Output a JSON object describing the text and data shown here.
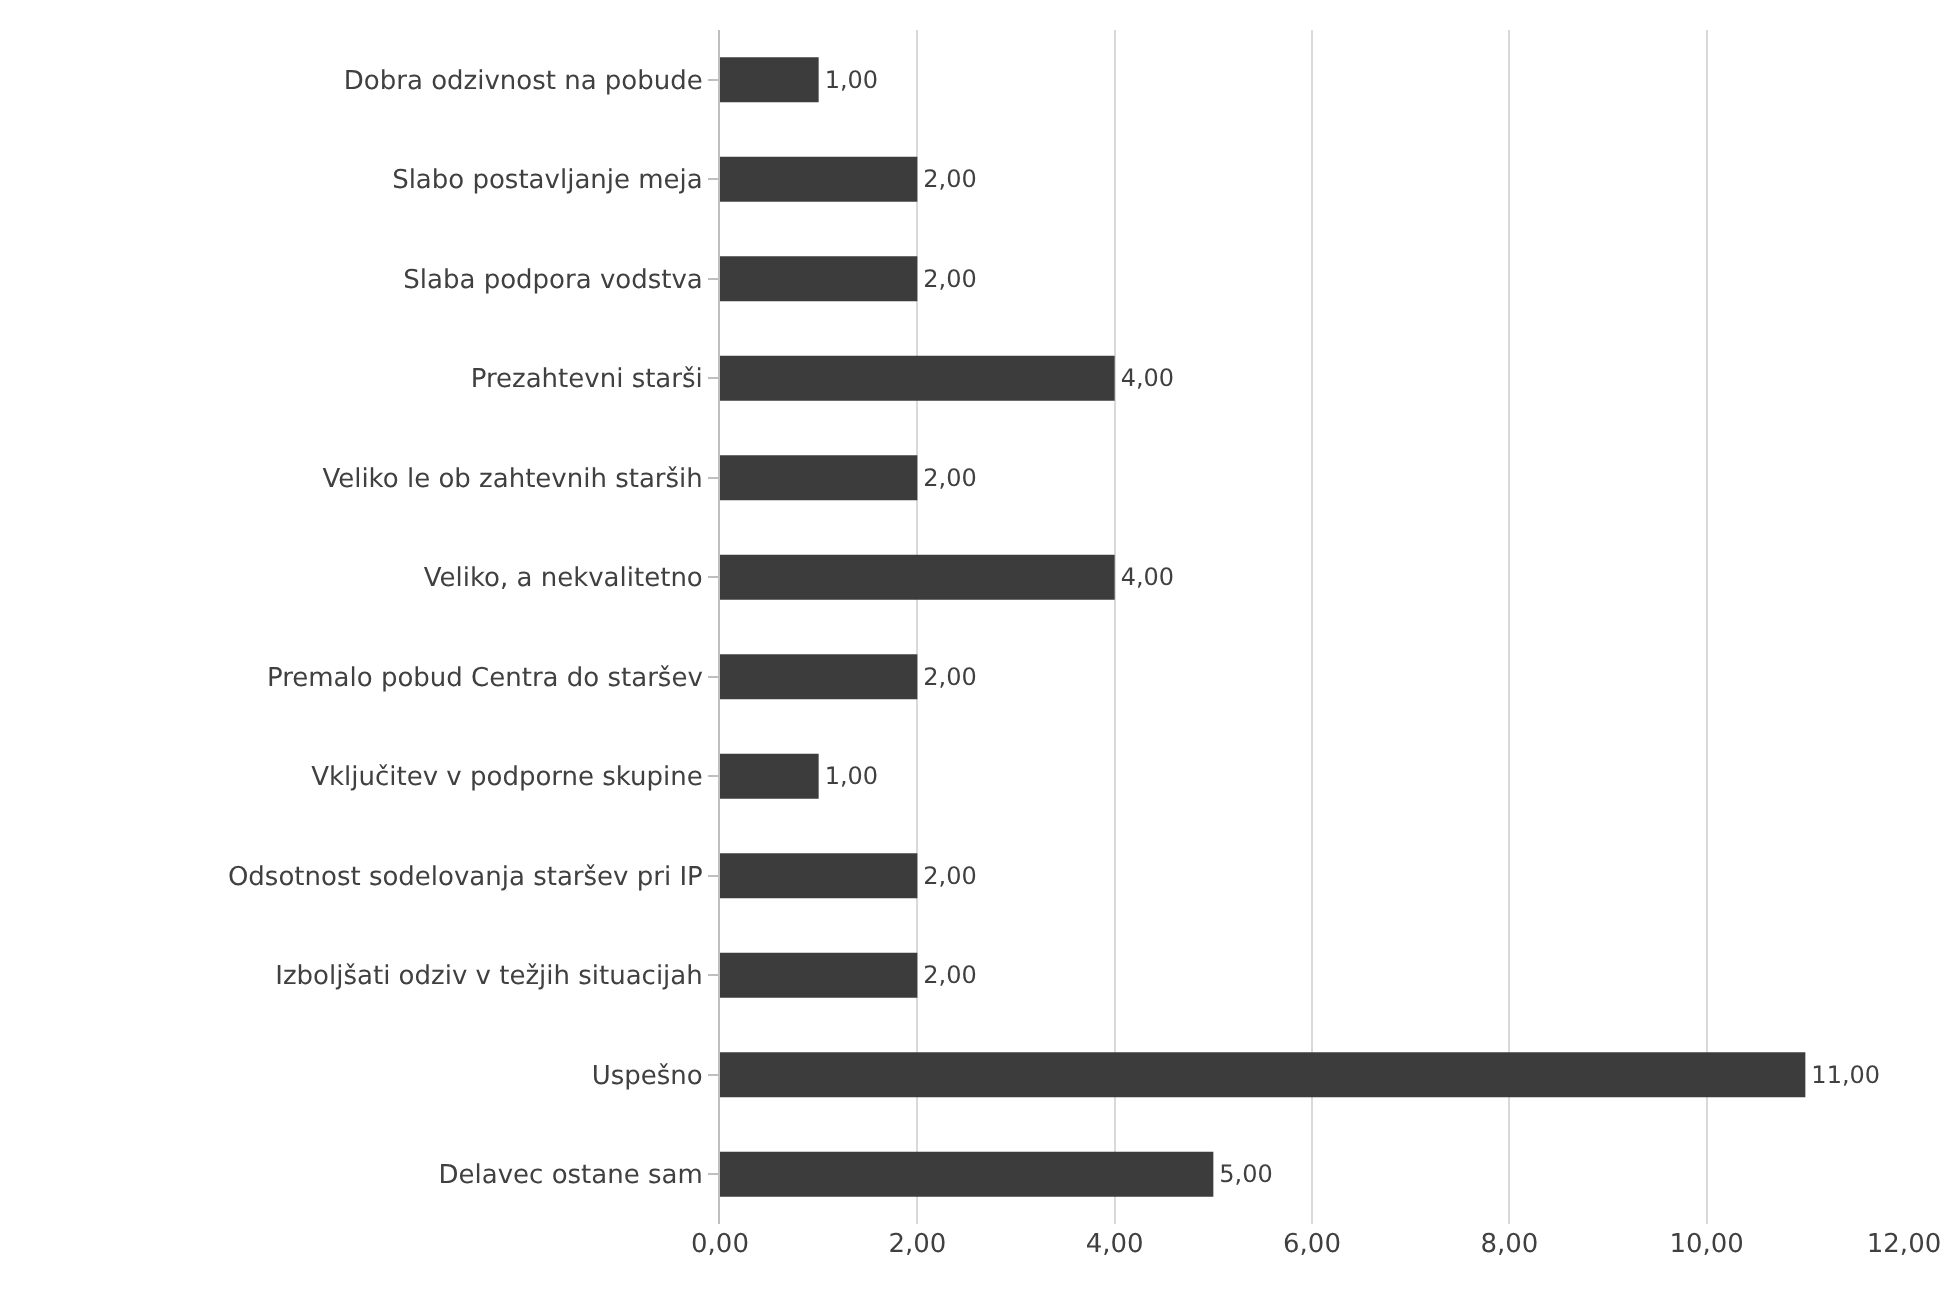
{
  "chart_data": {
    "type": "bar",
    "orientation": "horizontal",
    "categories": [
      "Dobra odzivnost na pobude",
      "Slabo postavljanje meja",
      "Slaba podpora vodstva",
      "Prezahtevni starši",
      "Veliko le ob zahtevnih starših",
      "Veliko, a nekvalitetno",
      "Premalo pobud Centra do staršev",
      "Vključitev v podporne skupine",
      "Odsotnost sodelovanja staršev pri IP",
      "Izboljšati odziv v težjih situacijah",
      "Uspešno",
      "Delavec ostane sam"
    ],
    "values": [
      1,
      2,
      2,
      4,
      2,
      4,
      2,
      1,
      2,
      2,
      11,
      5
    ],
    "value_labels": [
      "1,00",
      "2,00",
      "2,00",
      "4,00",
      "2,00",
      "4,00",
      "2,00",
      "1,00",
      "2,00",
      "2,00",
      "11,00",
      "5,00"
    ],
    "color": "#3c3c3c",
    "xlim": [
      0,
      12
    ],
    "xticks": [
      {
        "value": 0,
        "label": "0,00"
      },
      {
        "value": 2,
        "label": "2,00"
      },
      {
        "value": 4,
        "label": "4,00"
      },
      {
        "value": 6,
        "label": "6,00"
      },
      {
        "value": 8,
        "label": "8,00"
      },
      {
        "value": 10,
        "label": "10,00"
      },
      {
        "value": 12,
        "label": "12,00"
      }
    ],
    "grid": "x"
  }
}
